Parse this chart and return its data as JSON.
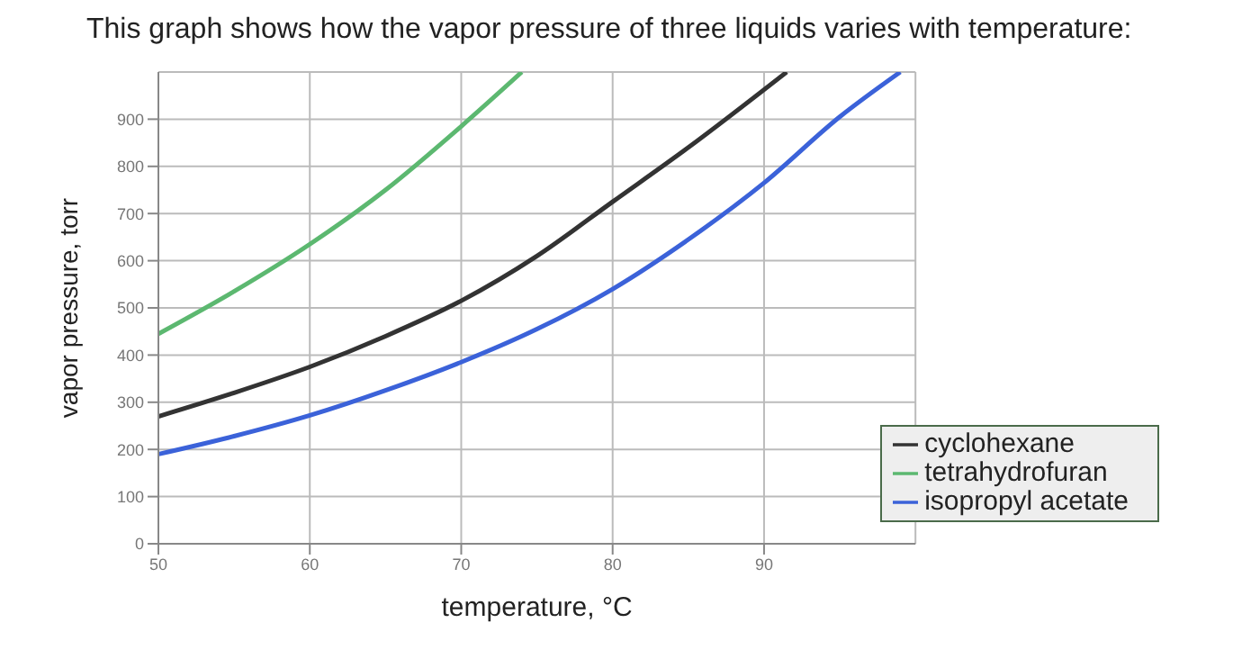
{
  "chart_data": {
    "type": "line",
    "title": "This graph shows how the vapor pressure of three liquids varies with temperature:",
    "xlabel": "temperature, °C",
    "ylabel": "vapor pressure, torr",
    "xlim": [
      50,
      100
    ],
    "ylim": [
      0,
      1000
    ],
    "xticks": [
      50,
      60,
      70,
      80,
      90
    ],
    "yticks": [
      0,
      100,
      200,
      300,
      400,
      500,
      600,
      700,
      800,
      900
    ],
    "grid": true,
    "legend": "bottom right",
    "marker": "none",
    "line_style": "solid",
    "series": [
      {
        "name": "cyclohexane",
        "color": "#333333",
        "x": [
          50,
          55,
          60,
          65,
          70,
          75,
          80,
          85,
          91.5
        ],
        "values": [
          270,
          320,
          375,
          440,
          515,
          610,
          725,
          840,
          1000
        ]
      },
      {
        "name": "tetrahydrofuran",
        "color": "#5cb870",
        "x": [
          50,
          55,
          60,
          65,
          70,
          74
        ],
        "values": [
          445,
          535,
          635,
          750,
          885,
          1000
        ]
      },
      {
        "name": "isopropyl acetate",
        "color": "#3b62d9",
        "x": [
          50,
          55,
          60,
          65,
          70,
          75,
          80,
          85,
          90,
          95,
          99
        ],
        "values": [
          190,
          228,
          272,
          325,
          385,
          455,
          540,
          645,
          765,
          905,
          1000
        ]
      }
    ]
  }
}
